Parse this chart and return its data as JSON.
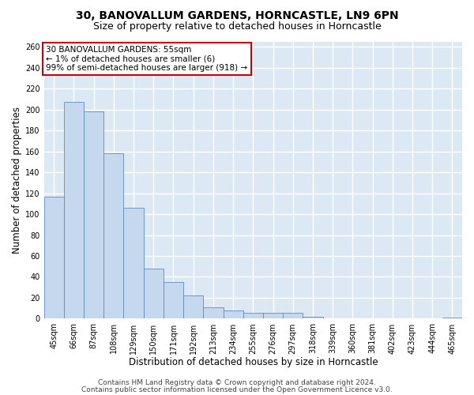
{
  "title1": "30, BANOVALLUM GARDENS, HORNCASTLE, LN9 6PN",
  "title2": "Size of property relative to detached houses in Horncastle",
  "xlabel": "Distribution of detached houses by size in Horncastle",
  "ylabel": "Number of detached properties",
  "categories": [
    "45sqm",
    "66sqm",
    "87sqm",
    "108sqm",
    "129sqm",
    "150sqm",
    "171sqm",
    "192sqm",
    "213sqm",
    "234sqm",
    "255sqm",
    "276sqm",
    "297sqm",
    "318sqm",
    "339sqm",
    "360sqm",
    "381sqm",
    "402sqm",
    "423sqm",
    "444sqm",
    "465sqm"
  ],
  "values": [
    117,
    207,
    198,
    158,
    106,
    48,
    35,
    22,
    11,
    8,
    6,
    6,
    6,
    2,
    0,
    0,
    0,
    0,
    0,
    0,
    1
  ],
  "bar_color": "#c5d8ee",
  "bar_edge_color": "#5b8dc8",
  "annotation_box_color": "#ffffff",
  "annotation_box_edge": "#cc0000",
  "annotation_text_line1": "30 BANOVALLUM GARDENS: 55sqm",
  "annotation_text_line2": "← 1% of detached houses are smaller (6)",
  "annotation_text_line3": "99% of semi-detached houses are larger (918) →",
  "ylim": [
    0,
    265
  ],
  "yticks": [
    0,
    20,
    40,
    60,
    80,
    100,
    120,
    140,
    160,
    180,
    200,
    220,
    240,
    260
  ],
  "footer1": "Contains HM Land Registry data © Crown copyright and database right 2024.",
  "footer2": "Contains public sector information licensed under the Open Government Licence v3.0.",
  "fig_bg_color": "#ffffff",
  "plot_bg_color": "#dce9f5",
  "grid_color": "#ffffff",
  "title1_fontsize": 10,
  "title2_fontsize": 9,
  "tick_fontsize": 7,
  "annotation_fontsize": 7.5,
  "xlabel_fontsize": 8.5,
  "ylabel_fontsize": 8.5,
  "footer_fontsize": 6.5
}
